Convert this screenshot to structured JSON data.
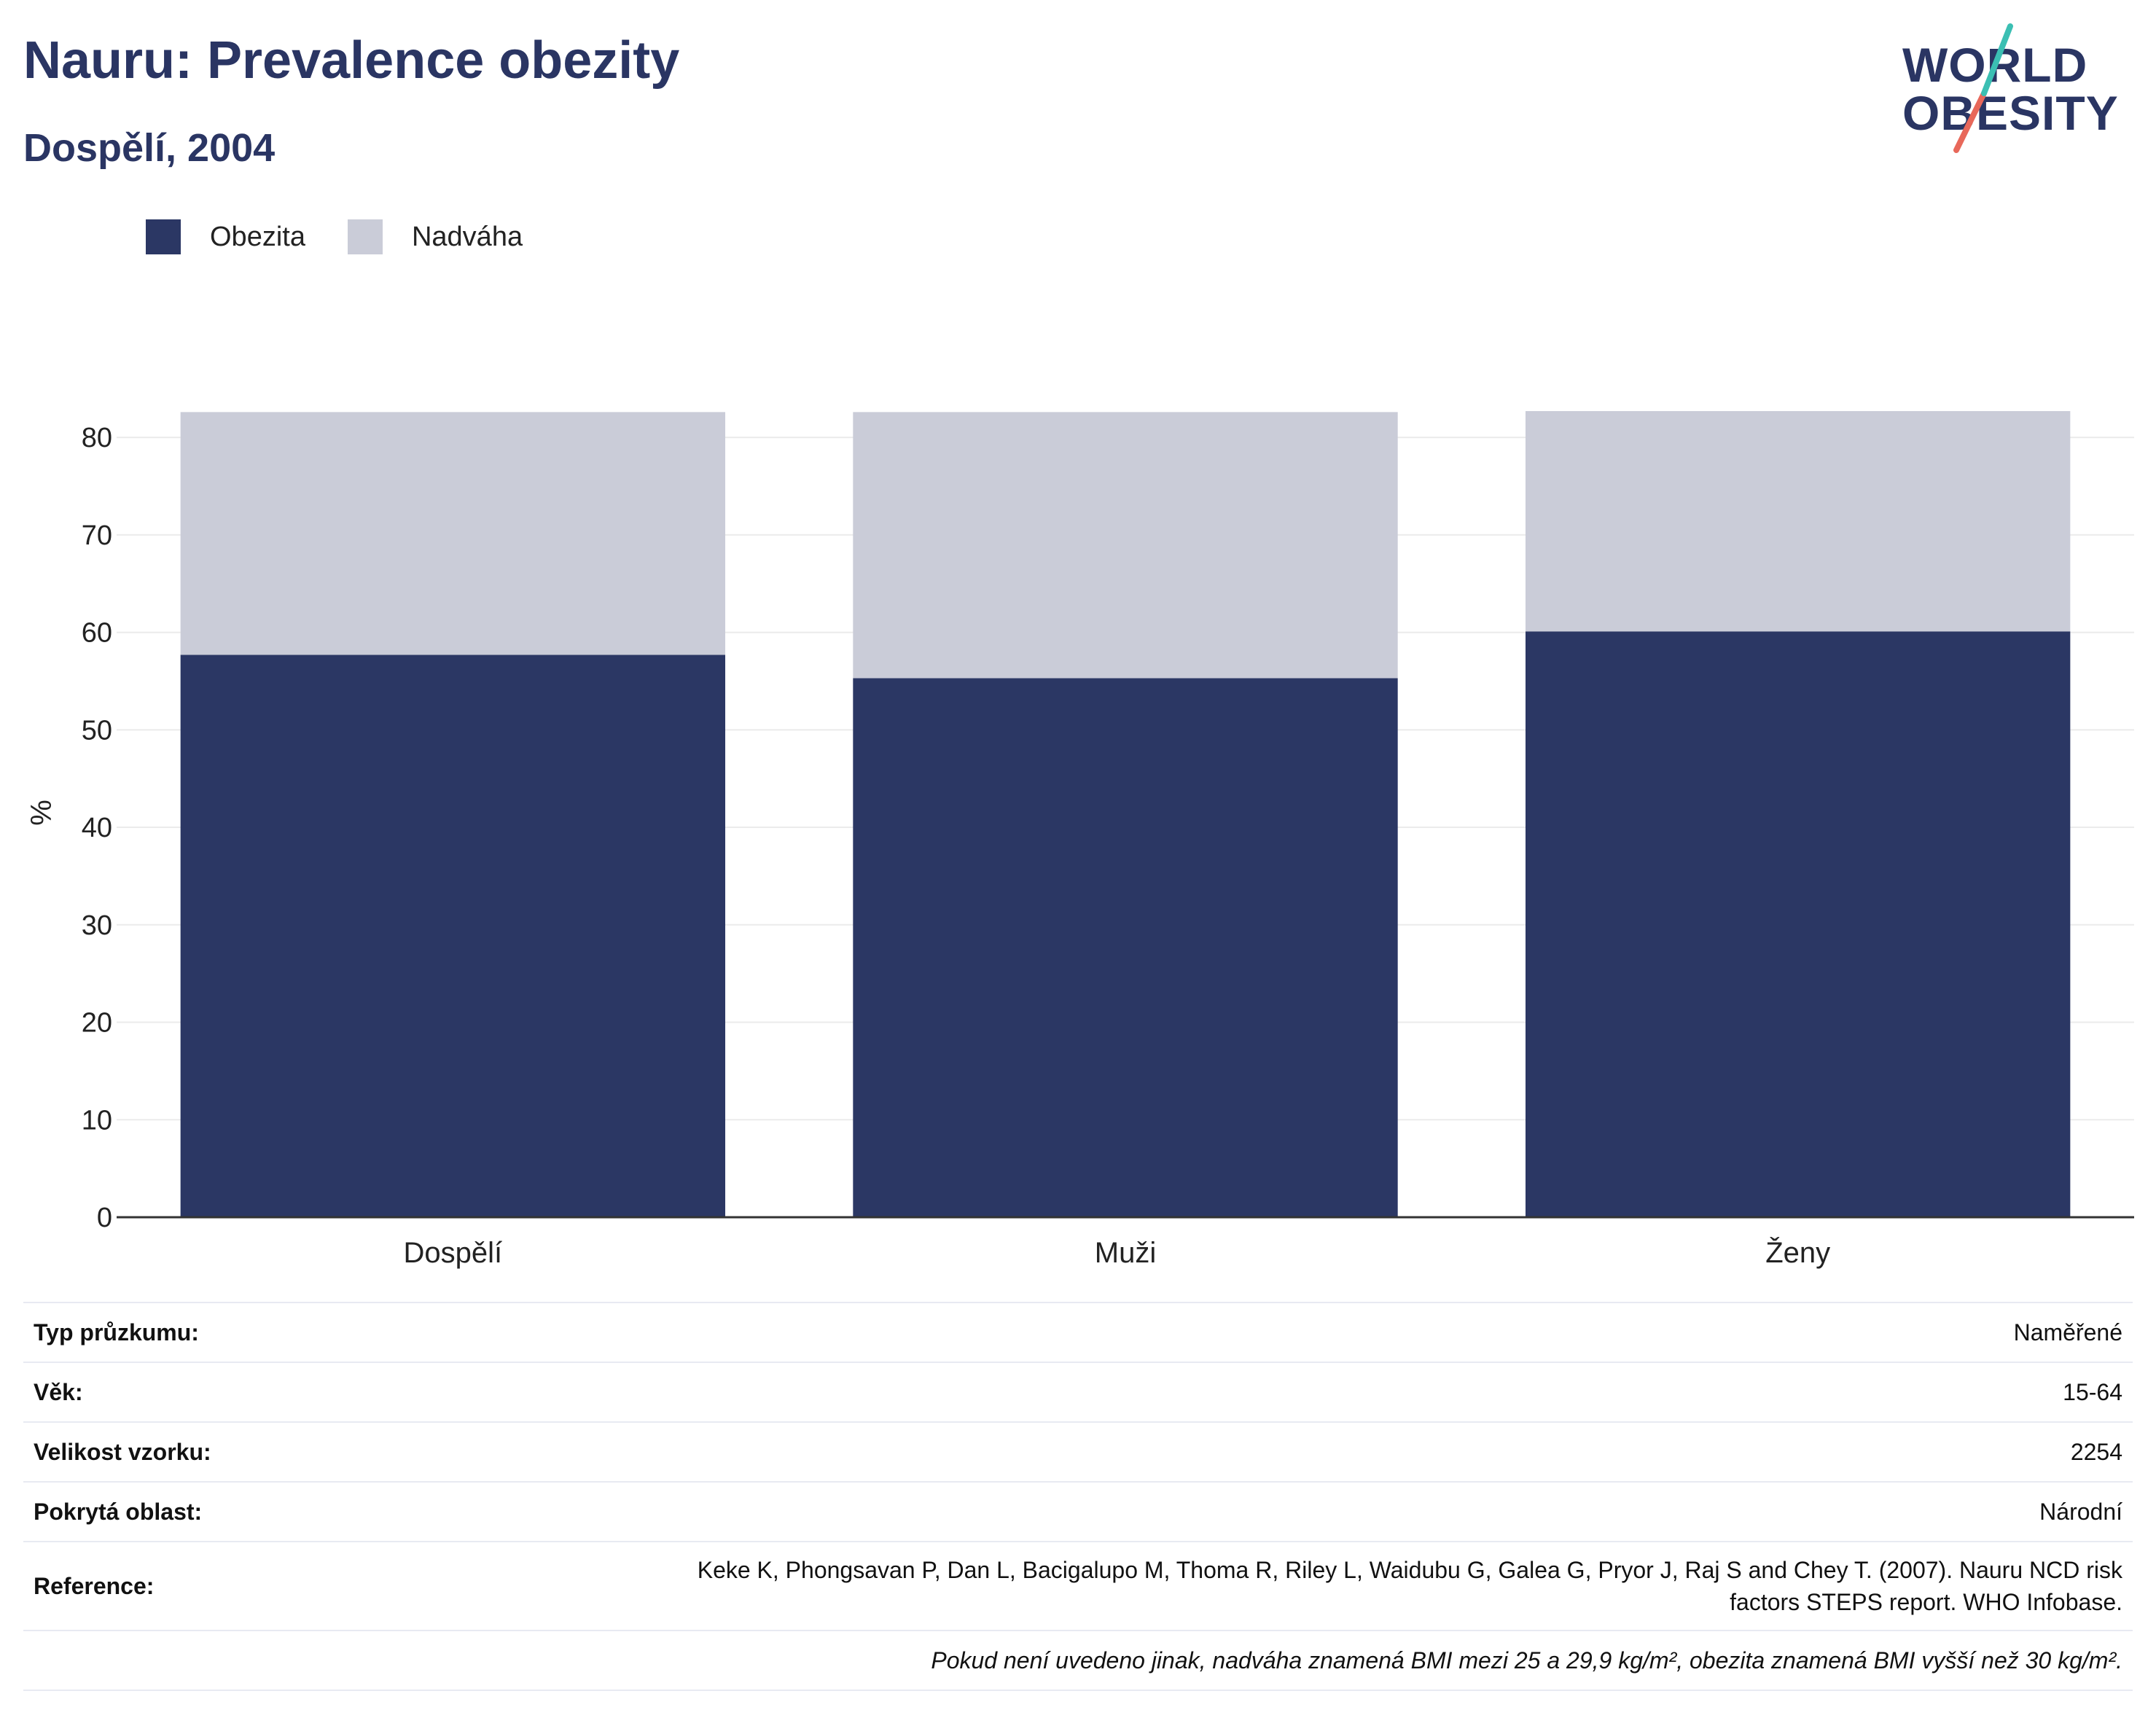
{
  "header": {
    "title": "Nauru: Prevalence obezity",
    "subtitle": "Dospělí, 2004"
  },
  "logo": {
    "line1": "WORLD",
    "line2": "OBESITY"
  },
  "legend": [
    {
      "label": "Obezita",
      "color": "#2b3764"
    },
    {
      "label": "Nadváha",
      "color": "#caccd8"
    }
  ],
  "chart_data": {
    "type": "bar",
    "stacked": true,
    "categories": [
      "Dospělí",
      "Muži",
      "Ženy"
    ],
    "series": [
      {
        "name": "Obezita",
        "values": [
          57.7,
          55.3,
          60.1
        ],
        "color": "#2b3764"
      },
      {
        "name": "Nadváha",
        "values": [
          24.9,
          27.3,
          22.6
        ],
        "color": "#caccd8"
      }
    ],
    "title": "Nauru: Prevalence obezity",
    "subtitle": "Dospělí, 2004",
    "xlabel": "",
    "ylabel": "%",
    "ylim": [
      0,
      83
    ],
    "yticks": [
      0,
      10,
      20,
      30,
      40,
      50,
      60,
      70,
      80
    ],
    "grid": true,
    "legend_position": "top-left"
  },
  "info": {
    "rows": [
      {
        "key": "Typ průzkumu:",
        "value": "Naměřené"
      },
      {
        "key": "Věk:",
        "value": "15-64"
      },
      {
        "key": "Velikost vzorku:",
        "value": "2254"
      },
      {
        "key": "Pokrytá oblast:",
        "value": "Národní"
      },
      {
        "key": "Reference:",
        "value_line1": "Keke K, Phongsavan P, Dan L, Bacigalupo M, Thoma R, Riley L, Waidubu G, Galea G, Pryor J, Raj S and Chey T. (2007). Nauru NCD risk",
        "value_line2": "factors STEPS report. WHO Infobase."
      }
    ],
    "note": "Pokud není uvedeno jinak, nadváha znamená BMI mezi 25 a 29,9 kg/m², obezita znamená BMI vyšší než 30 kg/m²."
  }
}
